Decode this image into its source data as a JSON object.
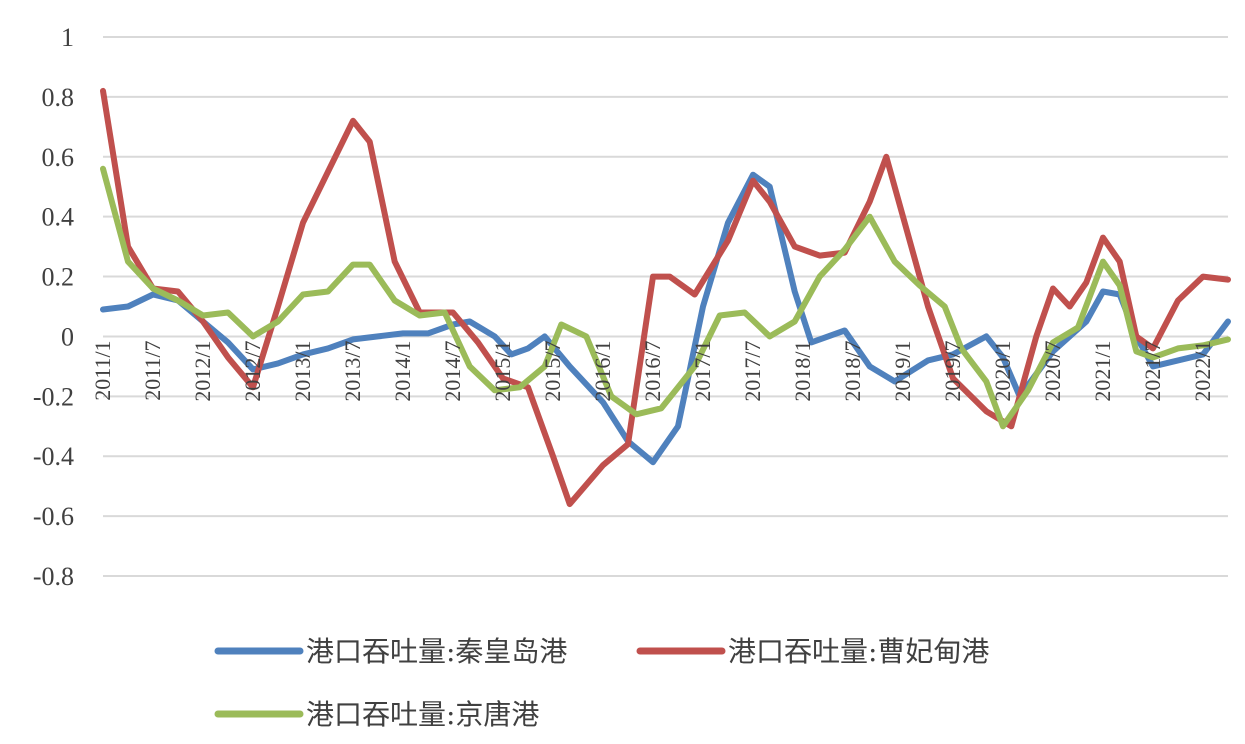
{
  "chart_data": {
    "type": "line",
    "title": "",
    "xlabel": "",
    "ylabel": "",
    "ylim": [
      -0.8,
      1
    ],
    "yticks": [
      1,
      0.8,
      0.6,
      0.4,
      0.2,
      0,
      -0.2,
      -0.4,
      -0.6,
      -0.8
    ],
    "ytick_labels": [
      "1",
      "0.8",
      "0.6",
      "0.4",
      "0.2",
      "0",
      "-0.2",
      "-0.4",
      "-0.6",
      "-0.8"
    ],
    "x_range": [
      "2011/1",
      "2022/4"
    ],
    "xtick_labels": [
      "2011/1",
      "2011/7",
      "2012/1",
      "2012/7",
      "2013/1",
      "2013/7",
      "2014/1",
      "2014/7",
      "2015/1",
      "2015/7",
      "2016/1",
      "2016/7",
      "2017/1",
      "2017/7",
      "2018/1",
      "2018/7",
      "2019/1",
      "2019/7",
      "2020/1",
      "2020/7",
      "2021/1",
      "2021/7",
      "2022/1"
    ],
    "grid": true,
    "legend": "bottom",
    "series": [
      {
        "name": "港口吞吐量:秦皇岛港",
        "color": "#4F81BD",
        "points": [
          [
            "2011/1",
            0.09
          ],
          [
            "2011/4",
            0.1
          ],
          [
            "2011/7",
            0.14
          ],
          [
            "2011/10",
            0.12
          ],
          [
            "2012/1",
            0.05
          ],
          [
            "2012/4",
            -0.02
          ],
          [
            "2012/7",
            -0.11
          ],
          [
            "2012/10",
            -0.09
          ],
          [
            "2013/1",
            -0.06
          ],
          [
            "2013/4",
            -0.04
          ],
          [
            "2013/7",
            -0.01
          ],
          [
            "2013/10",
            0.0
          ],
          [
            "2014/1",
            0.01
          ],
          [
            "2014/4",
            0.01
          ],
          [
            "2014/7",
            0.04
          ],
          [
            "2014/9",
            0.05
          ],
          [
            "2014/12",
            0.0
          ],
          [
            "2015/2",
            -0.06
          ],
          [
            "2015/4",
            -0.04
          ],
          [
            "2015/6",
            0.0
          ],
          [
            "2015/9",
            -0.1
          ],
          [
            "2016/1",
            -0.22
          ],
          [
            "2016/4",
            -0.35
          ],
          [
            "2016/7",
            -0.42
          ],
          [
            "2016/10",
            -0.3
          ],
          [
            "2017/1",
            0.1
          ],
          [
            "2017/4",
            0.38
          ],
          [
            "2017/7",
            0.54
          ],
          [
            "2017/9",
            0.5
          ],
          [
            "2017/12",
            0.15
          ],
          [
            "2018/2",
            -0.02
          ],
          [
            "2018/6",
            0.02
          ],
          [
            "2018/9",
            -0.1
          ],
          [
            "2018/12",
            -0.15
          ],
          [
            "2019/4",
            -0.08
          ],
          [
            "2019/7",
            -0.06
          ],
          [
            "2019/11",
            0.0
          ],
          [
            "2020/1",
            -0.07
          ],
          [
            "2020/3",
            -0.2
          ],
          [
            "2020/7",
            -0.05
          ],
          [
            "2020/11",
            0.05
          ],
          [
            "2021/1",
            0.15
          ],
          [
            "2021/3",
            0.14
          ],
          [
            "2021/5",
            0.0
          ],
          [
            "2021/7",
            -0.1
          ],
          [
            "2021/10",
            -0.08
          ],
          [
            "2022/1",
            -0.06
          ],
          [
            "2022/4",
            0.05
          ]
        ]
      },
      {
        "name": "港口吞吐量:曹妃甸港",
        "color": "#C0504D",
        "points": [
          [
            "2011/1",
            0.82
          ],
          [
            "2011/4",
            0.3
          ],
          [
            "2011/7",
            0.16
          ],
          [
            "2011/10",
            0.15
          ],
          [
            "2012/1",
            0.05
          ],
          [
            "2012/4",
            -0.07
          ],
          [
            "2012/7",
            -0.17
          ],
          [
            "2012/10",
            0.1
          ],
          [
            "2013/1",
            0.38
          ],
          [
            "2013/4",
            0.55
          ],
          [
            "2013/7",
            0.72
          ],
          [
            "2013/9",
            0.65
          ],
          [
            "2013/12",
            0.25
          ],
          [
            "2014/3",
            0.08
          ],
          [
            "2014/7",
            0.08
          ],
          [
            "2014/10",
            -0.02
          ],
          [
            "2015/1",
            -0.14
          ],
          [
            "2015/4",
            -0.17
          ],
          [
            "2015/7",
            -0.4
          ],
          [
            "2015/9",
            -0.56
          ],
          [
            "2016/1",
            -0.43
          ],
          [
            "2016/4",
            -0.36
          ],
          [
            "2016/7",
            0.2
          ],
          [
            "2016/9",
            0.2
          ],
          [
            "2016/12",
            0.14
          ],
          [
            "2017/4",
            0.32
          ],
          [
            "2017/7",
            0.52
          ],
          [
            "2017/9",
            0.45
          ],
          [
            "2017/12",
            0.3
          ],
          [
            "2018/3",
            0.27
          ],
          [
            "2018/6",
            0.28
          ],
          [
            "2018/9",
            0.45
          ],
          [
            "2018/11",
            0.6
          ],
          [
            "2019/1",
            0.4
          ],
          [
            "2019/4",
            0.1
          ],
          [
            "2019/7",
            -0.14
          ],
          [
            "2019/11",
            -0.25
          ],
          [
            "2020/2",
            -0.3
          ],
          [
            "2020/5",
            0.0
          ],
          [
            "2020/7",
            0.16
          ],
          [
            "2020/9",
            0.1
          ],
          [
            "2020/11",
            0.18
          ],
          [
            "2021/1",
            0.33
          ],
          [
            "2021/3",
            0.25
          ],
          [
            "2021/5",
            0.0
          ],
          [
            "2021/7",
            -0.04
          ],
          [
            "2021/10",
            0.12
          ],
          [
            "2022/1",
            0.2
          ],
          [
            "2022/4",
            0.19
          ]
        ]
      },
      {
        "name": "港口吞吐量:京唐港",
        "color": "#9BBB59",
        "points": [
          [
            "2011/1",
            0.56
          ],
          [
            "2011/4",
            0.25
          ],
          [
            "2011/7",
            0.16
          ],
          [
            "2011/10",
            0.12
          ],
          [
            "2012/1",
            0.07
          ],
          [
            "2012/4",
            0.08
          ],
          [
            "2012/7",
            0.0
          ],
          [
            "2012/10",
            0.05
          ],
          [
            "2013/1",
            0.14
          ],
          [
            "2013/4",
            0.15
          ],
          [
            "2013/7",
            0.24
          ],
          [
            "2013/9",
            0.24
          ],
          [
            "2013/12",
            0.12
          ],
          [
            "2014/3",
            0.07
          ],
          [
            "2014/6",
            0.08
          ],
          [
            "2014/9",
            -0.1
          ],
          [
            "2014/12",
            -0.18
          ],
          [
            "2015/3",
            -0.17
          ],
          [
            "2015/6",
            -0.1
          ],
          [
            "2015/8",
            0.04
          ],
          [
            "2015/11",
            0.0
          ],
          [
            "2016/2",
            -0.2
          ],
          [
            "2016/5",
            -0.26
          ],
          [
            "2016/8",
            -0.24
          ],
          [
            "2016/12",
            -0.1
          ],
          [
            "2017/3",
            0.07
          ],
          [
            "2017/6",
            0.08
          ],
          [
            "2017/9",
            0.0
          ],
          [
            "2017/12",
            0.05
          ],
          [
            "2018/3",
            0.2
          ],
          [
            "2018/6",
            0.29
          ],
          [
            "2018/9",
            0.4
          ],
          [
            "2018/12",
            0.25
          ],
          [
            "2019/3",
            0.17
          ],
          [
            "2019/6",
            0.1
          ],
          [
            "2019/8",
            -0.04
          ],
          [
            "2019/11",
            -0.15
          ],
          [
            "2020/1",
            -0.3
          ],
          [
            "2020/4",
            -0.18
          ],
          [
            "2020/7",
            -0.02
          ],
          [
            "2020/10",
            0.03
          ],
          [
            "2021/1",
            0.25
          ],
          [
            "2021/3",
            0.17
          ],
          [
            "2021/5",
            -0.05
          ],
          [
            "2021/7",
            -0.07
          ],
          [
            "2021/10",
            -0.04
          ],
          [
            "2022/1",
            -0.03
          ],
          [
            "2022/4",
            -0.01
          ]
        ]
      }
    ]
  }
}
